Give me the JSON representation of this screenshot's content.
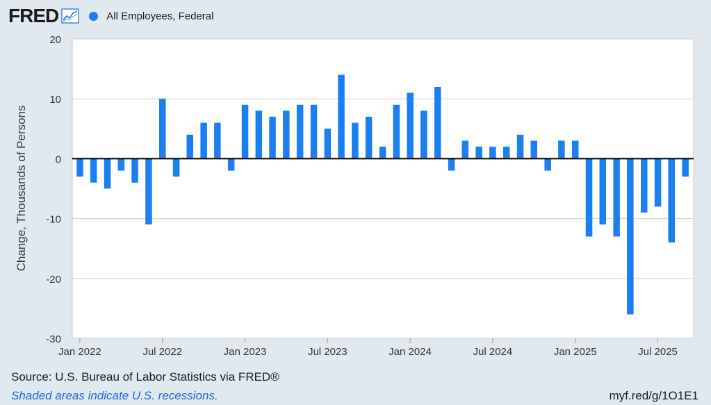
{
  "header": {
    "logo_text": "FRED",
    "series_name": "All Employees, Federal",
    "series_color": "#1a7ff0"
  },
  "footer": {
    "source": "Source: U.S. Bureau of Labor Statistics via FRED®",
    "recession_note": "Shaded areas indicate U.S. recessions.",
    "short_link": "myf.red/g/1O1E1"
  },
  "chart_data": {
    "type": "bar",
    "title": "",
    "xlabel": "",
    "ylabel": "Change, Thousands of Persons",
    "ylim": [
      -30,
      20
    ],
    "yticks": [
      20,
      10,
      0,
      -10,
      -20,
      -30
    ],
    "xtick_labels": [
      "Jan 2022",
      "Jul 2022",
      "Jan 2023",
      "Jul 2023",
      "Jan 2024",
      "Jul 2024",
      "Jan 2025",
      "Jul 2025"
    ],
    "xtick_dates": [
      "2022-01",
      "2022-07",
      "2023-01",
      "2023-07",
      "2024-01",
      "2024-07",
      "2025-01",
      "2025-07"
    ],
    "grid": true,
    "series": [
      {
        "name": "All Employees, Federal",
        "color": "#1a7ff0",
        "dates": [
          "2022-01",
          "2022-02",
          "2022-03",
          "2022-04",
          "2022-05",
          "2022-06",
          "2022-07",
          "2022-08",
          "2022-09",
          "2022-10",
          "2022-11",
          "2022-12",
          "2023-01",
          "2023-02",
          "2023-03",
          "2023-04",
          "2023-05",
          "2023-06",
          "2023-07",
          "2023-08",
          "2023-09",
          "2023-10",
          "2023-11",
          "2023-12",
          "2024-01",
          "2024-02",
          "2024-03",
          "2024-04",
          "2024-05",
          "2024-06",
          "2024-07",
          "2024-08",
          "2024-09",
          "2024-10",
          "2024-11",
          "2024-12",
          "2025-01",
          "2025-02",
          "2025-03",
          "2025-04",
          "2025-05",
          "2025-06",
          "2025-07",
          "2025-08",
          "2025-09"
        ],
        "values": [
          -3,
          -4,
          -5,
          -2,
          -4,
          -11,
          10,
          -3,
          4,
          6,
          6,
          -2,
          9,
          8,
          7,
          8,
          9,
          9,
          5,
          14,
          6,
          7,
          2,
          9,
          11,
          8,
          12,
          -2,
          3,
          2,
          2,
          2,
          4,
          3,
          -2,
          3,
          3,
          -13,
          -11,
          -13,
          -26,
          -9,
          -8,
          -14,
          -3
        ]
      }
    ]
  }
}
